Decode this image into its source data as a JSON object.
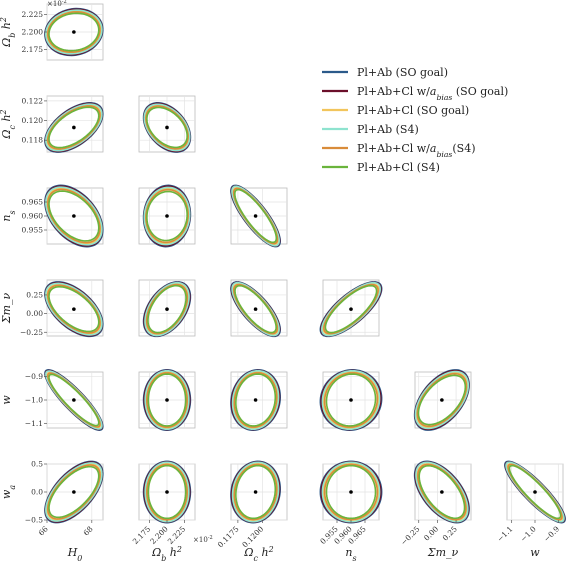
{
  "chart_data": {
    "type": "scatter",
    "subtype": "corner-plot (Fisher forecast confidence ellipses)",
    "parameters": [
      {
        "key": "H0",
        "label": "H_0",
        "center": 67.2,
        "range": [
          66,
          68.5
        ],
        "ticks": [
          66,
          68
        ],
        "tick_labels": [
          "66",
          "68"
        ],
        "multiplier": ""
      },
      {
        "key": "ombh2",
        "label": "Ω_b h^2",
        "center": 2.2,
        "range": [
          2.16,
          2.24
        ],
        "ticks": [
          2.175,
          2.2,
          2.225
        ],
        "tick_labels": [
          "2.175",
          "2.200",
          "2.225"
        ],
        "multiplier": "×10^-2"
      },
      {
        "key": "omch2",
        "label": "Ω_c h^2",
        "center": 0.1193,
        "range": [
          0.1168,
          0.1225
        ],
        "ticks": [
          0.118,
          0.12,
          0.122
        ],
        "tick_labels": [
          "0.118",
          "0.120",
          "0.122"
        ],
        "x_ticks": [
          0.1175,
          0.12
        ],
        "x_tick_labels": [
          "0.1175",
          "0.1200"
        ],
        "multiplier": ""
      },
      {
        "key": "ns",
        "label": "n_s",
        "center": 0.96,
        "range": [
          0.95,
          0.97
        ],
        "ticks": [
          0.955,
          0.96,
          0.965
        ],
        "tick_labels": [
          "0.955",
          "0.960",
          "0.965"
        ],
        "multiplier": ""
      },
      {
        "key": "mnu",
        "label": "Σm_ν",
        "center": 0.06,
        "range": [
          -0.3,
          0.45
        ],
        "ticks": [
          -0.25,
          0,
          0.25
        ],
        "tick_labels": [
          "−0.25",
          "0.00",
          "0.25"
        ],
        "multiplier": ""
      },
      {
        "key": "w",
        "label": "w",
        "center": -1.0,
        "range": [
          -1.12,
          -0.88
        ],
        "ticks": [
          -1.1,
          -1.0,
          -0.9
        ],
        "tick_labels": [
          "−1.1",
          "−1.0",
          "−0.9"
        ],
        "multiplier": ""
      },
      {
        "key": "wa",
        "label": "w_a",
        "center": 0.0,
        "range": [
          -0.5,
          0.5
        ],
        "ticks": [
          -0.5,
          0,
          0.5
        ],
        "tick_labels": [
          "−0.5",
          "0.0",
          "0.5"
        ],
        "multiplier": ""
      }
    ],
    "x_axis_params": [
      "H0",
      "ombh2",
      "omch2",
      "ns",
      "mnu",
      "w"
    ],
    "y_axis_params": [
      "ombh2",
      "omch2",
      "ns",
      "mnu",
      "w",
      "wa"
    ],
    "x_axis_labels": [
      "H_0",
      "Ω_b h^2",
      "Ω_c h^2",
      "n_s",
      "Σm_ν",
      "w"
    ],
    "y_axis_labels": [
      "Ω_b h^2",
      "Ω_c h^2",
      "n_s",
      "Σm_ν",
      "w",
      "w_a"
    ],
    "x_multiplier_label": "×10^-2",
    "y_multiplier_label": "×10^-2",
    "series": [
      {
        "name": "Pl+Ab (SO goal)",
        "color": "#2b5a8a",
        "scale": 1.0,
        "sig_scale": 1.0
      },
      {
        "name": "Pl+Ab+Cl w/a_bias (SO goal)",
        "color": "#6b0f2a",
        "scale": 0.97,
        "sig_scale": 0.98
      },
      {
        "name": "Pl+Ab+Cl (SO goal)",
        "color": "#f2c55c",
        "scale": 0.9,
        "sig_scale": 0.92
      },
      {
        "name": "Pl+Ab (S4)",
        "color": "#8ee3cf",
        "scale": 0.85,
        "sig_scale": 0.97
      },
      {
        "name": "Pl+Ab+Cl w/a_bias(S4)",
        "color": "#d98c3a",
        "scale": 0.82,
        "sig_scale": 0.9
      },
      {
        "name": "Pl+Ab+Cl (S4)",
        "color": "#6ab43c",
        "scale": 0.72,
        "sig_scale": 0.86
      }
    ],
    "sigmas": {
      "H0": 0.85,
      "ombh2": 0.022,
      "omch2": 0.00165,
      "ns": 0.0072,
      "mnu": 0.24,
      "w": 0.085,
      "wa": 0.36
    },
    "correlations": {
      "H0|ombh2": 0.1,
      "H0|omch2": 0.55,
      "H0|ns": -0.45,
      "H0|mnu": -0.55,
      "H0|w": -0.88,
      "H0|wa": 0.6,
      "ombh2|omch2": -0.4,
      "ombh2|ns": 0.05,
      "ombh2|mnu": 0.45,
      "ombh2|w": 0.0,
      "ombh2|wa": 0.0,
      "omch2|ns": -0.82,
      "omch2|mnu": -0.75,
      "omch2|w": 0.1,
      "omch2|wa": 0.1,
      "ns|mnu": 0.75,
      "ns|w": 0.05,
      "ns|wa": 0.0,
      "mnu|w": 0.5,
      "mnu|wa": -0.55,
      "w|wa": -0.88
    },
    "legend": {
      "placement": "top-right"
    },
    "grid": true
  }
}
